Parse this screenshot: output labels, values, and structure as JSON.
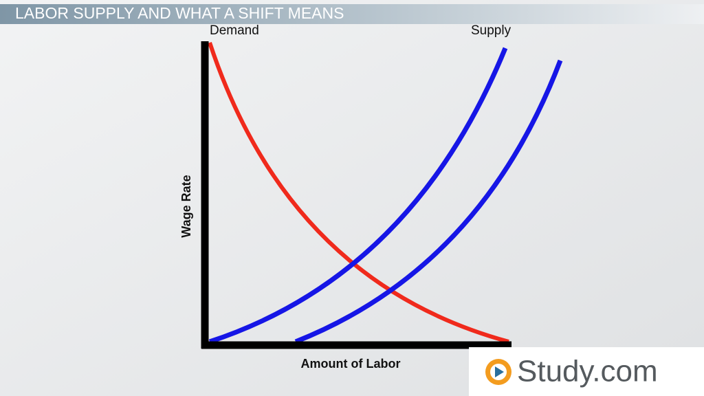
{
  "header": {
    "title": "LABOR SUPPLY AND WHAT A SHIFT MEANS"
  },
  "diagram": {
    "demand_label": "Demand",
    "supply_label": "Supply",
    "y_axis_label": "Wage Rate",
    "x_axis_label": "Amount of Labor"
  },
  "logo": {
    "text": "Study.com"
  }
}
